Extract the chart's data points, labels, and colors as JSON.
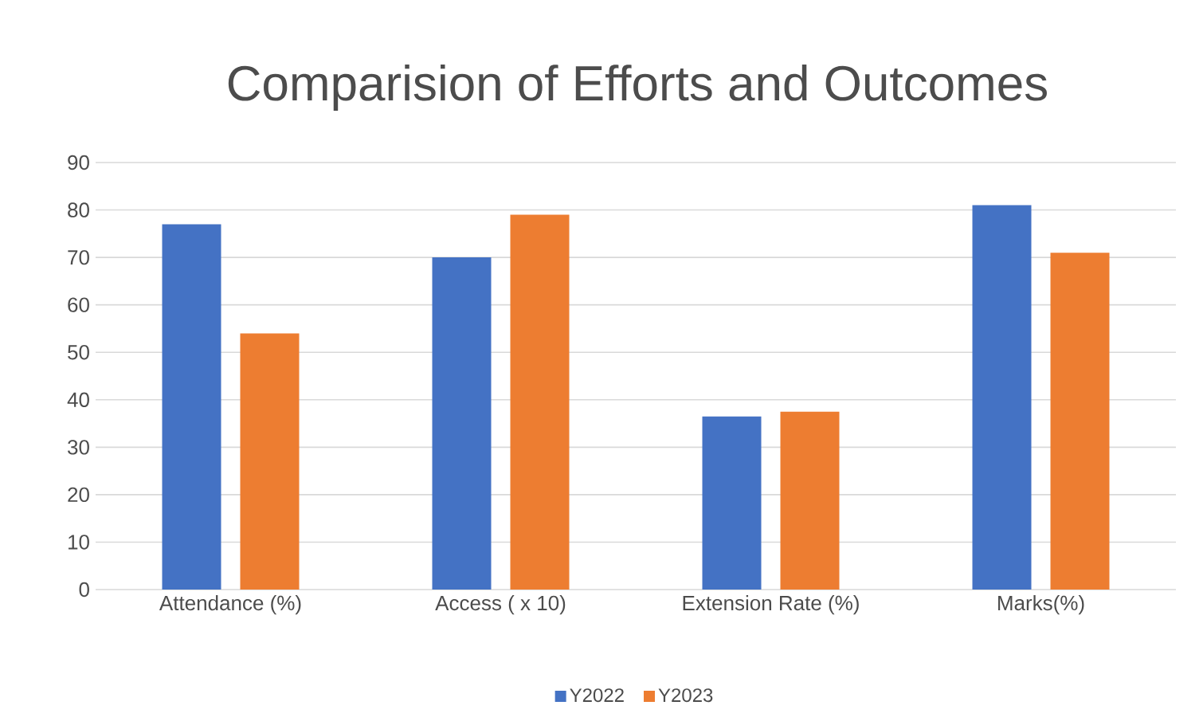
{
  "chart_data": {
    "type": "bar",
    "title": "Comparision of Efforts and Outcomes",
    "categories": [
      "Attendance (%)",
      "Access ( x 10)",
      "Extension Rate (%)",
      "Marks(%)"
    ],
    "series": [
      {
        "name": "Y2022",
        "color": "#4472c4",
        "values": [
          77,
          70,
          36.5,
          81
        ]
      },
      {
        "name": "Y2023",
        "color": "#ed7d31",
        "values": [
          54,
          79,
          37.5,
          71
        ]
      }
    ],
    "ylim": [
      0,
      90
    ],
    "yticks": [
      0,
      10,
      20,
      30,
      40,
      50,
      60,
      70,
      80,
      90
    ],
    "grid": "y",
    "legend": "bottom"
  }
}
